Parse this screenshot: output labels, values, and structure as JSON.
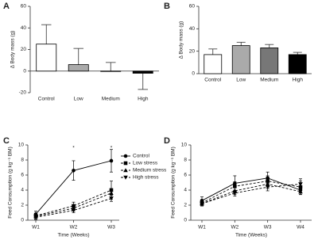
{
  "chart_data": [
    {
      "type": "bar",
      "panel_label": "A",
      "ylabel": "Δ Body mass (g)",
      "categories": [
        "Control",
        "Low",
        "Medium",
        "High"
      ],
      "values": [
        25,
        6,
        0,
        -2
      ],
      "errors": [
        18,
        15,
        8,
        15
      ],
      "colors": [
        "#ffffff",
        "#aaaaaa",
        "#777777",
        "#000000"
      ],
      "ylim": [
        -20,
        60
      ],
      "yticks": [
        -20,
        0,
        20,
        40,
        60
      ]
    },
    {
      "type": "bar",
      "panel_label": "B",
      "ylabel": "Δ Body mass (g)",
      "categories": [
        "Control",
        "Low",
        "Medium",
        "High"
      ],
      "values": [
        17,
        25,
        23,
        17
      ],
      "errors": [
        5,
        3,
        3,
        2
      ],
      "colors": [
        "#ffffff",
        "#aaaaaa",
        "#777777",
        "#000000"
      ],
      "ylim": [
        0,
        60
      ],
      "yticks": [
        0,
        20,
        40,
        60
      ]
    },
    {
      "type": "line",
      "panel_label": "C",
      "ylabel": "Feed Consumption (g kg⁻¹ BM)",
      "xlabel": "Time (Weeks)",
      "categories": [
        "W1",
        "W2",
        "W3"
      ],
      "series": [
        {
          "name": "Control",
          "color": "#000000",
          "marker": "circle",
          "line_style": "solid",
          "values": [
            0.8,
            6.6,
            7.9
          ],
          "errors": [
            0.4,
            1.3,
            1.5
          ]
        },
        {
          "name": "Low stress",
          "color": "#000000",
          "marker": "square",
          "line_style": "dashed",
          "values": [
            0.6,
            1.9,
            4.0
          ],
          "errors": [
            0.3,
            0.5,
            1.2
          ]
        },
        {
          "name": "Medium stress",
          "color": "#000000",
          "marker": "triangle-up",
          "line_style": "dashed",
          "values": [
            0.5,
            1.6,
            3.6
          ],
          "errors": [
            0.3,
            0.4,
            0.6
          ]
        },
        {
          "name": "High stress",
          "color": "#000000",
          "marker": "triangle-down",
          "line_style": "dashed",
          "values": [
            0.4,
            1.3,
            2.9
          ],
          "errors": [
            0.3,
            0.3,
            0.4
          ]
        }
      ],
      "annotations": [
        {
          "category": "W2",
          "text": "*"
        },
        {
          "category": "W3",
          "text": "*"
        }
      ],
      "legend": "upper right",
      "ylim": [
        0,
        10
      ],
      "yticks": [
        0,
        2,
        4,
        6,
        8,
        10
      ]
    },
    {
      "type": "line",
      "panel_label": "D",
      "ylabel": "Feed Consumption (g kg⁻¹ BM)",
      "xlabel": "Time (Weeks)",
      "categories": [
        "W1",
        "W2",
        "W3",
        "W4"
      ],
      "series": [
        {
          "name": "Control",
          "color": "#000000",
          "marker": "circle",
          "line_style": "solid",
          "values": [
            2.6,
            4.9,
            5.6,
            4.0
          ],
          "errors": [
            0.5,
            1.0,
            0.8,
            0.6
          ]
        },
        {
          "name": "Low stress",
          "color": "#000000",
          "marker": "square",
          "line_style": "dashed",
          "values": [
            2.3,
            4.5,
            5.2,
            4.4
          ],
          "errors": [
            0.4,
            0.6,
            0.7,
            0.8
          ]
        },
        {
          "name": "Medium stress",
          "color": "#000000",
          "marker": "triangle-up",
          "line_style": "dashed",
          "values": [
            2.2,
            3.9,
            4.8,
            3.8
          ],
          "errors": [
            0.3,
            0.5,
            0.6,
            0.4
          ]
        },
        {
          "name": "High stress",
          "color": "#000000",
          "marker": "triangle-down",
          "line_style": "dashed",
          "values": [
            2.2,
            3.6,
            4.4,
            4.8
          ],
          "errors": [
            0.3,
            0.4,
            0.5,
            0.7
          ]
        }
      ],
      "ylim": [
        0,
        10
      ],
      "yticks": [
        0,
        2,
        4,
        6,
        8,
        10
      ]
    }
  ]
}
